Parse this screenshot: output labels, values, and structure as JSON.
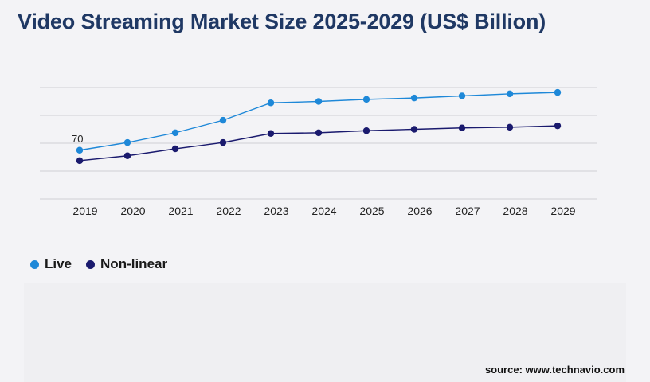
{
  "title": "Video Streaming Market Size 2025-2029 (US$ Billion)",
  "source": "source: www.technavio.com",
  "colors": {
    "live": "#1e88d8",
    "nonlinear": "#1a1a6e",
    "title": "#1f3864",
    "grid": "#cfcfd4"
  },
  "chart_data": {
    "type": "line",
    "title": "Video Streaming Market Size 2025-2029 (US$ Billion)",
    "x": [
      "2019",
      "2020",
      "2021",
      "2022",
      "2023",
      "2024",
      "2025",
      "2026",
      "2027",
      "2028",
      "2029"
    ],
    "ylim": [
      0,
      200
    ],
    "grid": true,
    "legend_position": "bottom-left",
    "series": [
      {
        "name": "Live",
        "color": "#1e88d8",
        "values": [
          70,
          81,
          95,
          113,
          138,
          140,
          143,
          145,
          148,
          151,
          153
        ]
      },
      {
        "name": "Non-linear",
        "color": "#1a1a6e",
        "values": [
          55,
          62,
          72,
          81,
          94,
          95,
          98,
          100,
          102,
          103,
          105
        ]
      }
    ],
    "annotations": [
      {
        "series": "Live",
        "index": 0,
        "text": "70"
      }
    ]
  }
}
